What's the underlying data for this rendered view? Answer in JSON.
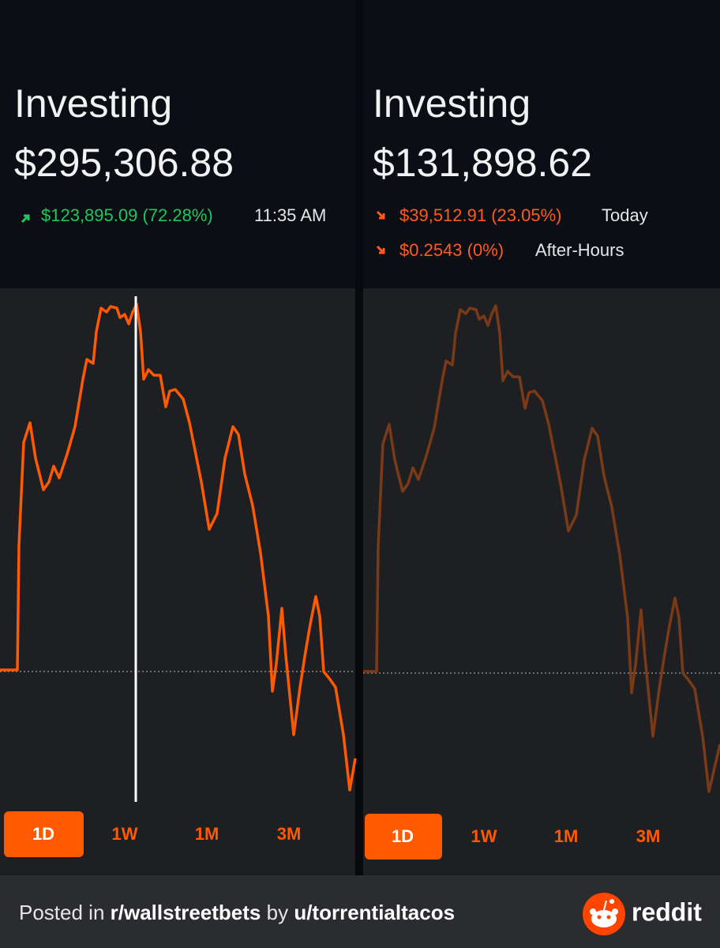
{
  "left": {
    "title": "Investing",
    "balance": "$295,306.88",
    "change": "$123,895.09 (72.28%)",
    "time": "11:35 AM",
    "tabs": [
      "1D",
      "1W",
      "1M",
      "3M"
    ]
  },
  "right": {
    "title": "Investing",
    "balance": "$131,898.62",
    "change": "$39,512.91 (23.05%)",
    "change_label": "Today",
    "after_change": "$0.2543 (0%)",
    "after_label": "After-Hours",
    "tabs": [
      "1D",
      "1W",
      "1M",
      "3M"
    ]
  },
  "footer": {
    "posted_in": "Posted in",
    "subreddit": "r/wallstreetbets",
    "by": "by",
    "user": "u/torrentialtacos",
    "brand": "reddit"
  }
}
